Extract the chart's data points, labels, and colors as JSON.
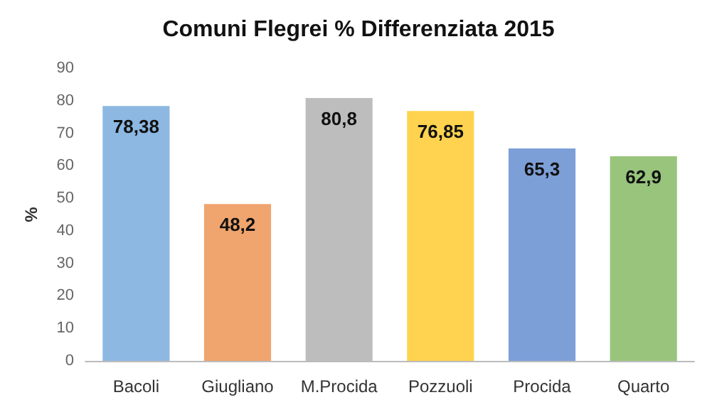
{
  "chart_data": {
    "type": "bar",
    "title": "Comuni Flegrei % Differenziata 2015",
    "ylabel": "%",
    "categories": [
      "Bacoli",
      "Giugliano",
      "M.Procida",
      "Pozzuoli",
      "Procida",
      "Quarto"
    ],
    "values": [
      78.38,
      48.2,
      80.8,
      76.85,
      65.3,
      62.9
    ],
    "value_labels": [
      "78,38",
      "48,2",
      "80,8",
      "76,85",
      "65,3",
      "62,9"
    ],
    "colors": [
      "#8cb8e2",
      "#f0a46e",
      "#bdbdbd",
      "#ffd34f",
      "#7d9fd8",
      "#98c47c"
    ],
    "ylim": [
      0,
      90
    ],
    "yticks": [
      0,
      10,
      20,
      30,
      40,
      50,
      60,
      70,
      80,
      90
    ],
    "grid": false
  }
}
